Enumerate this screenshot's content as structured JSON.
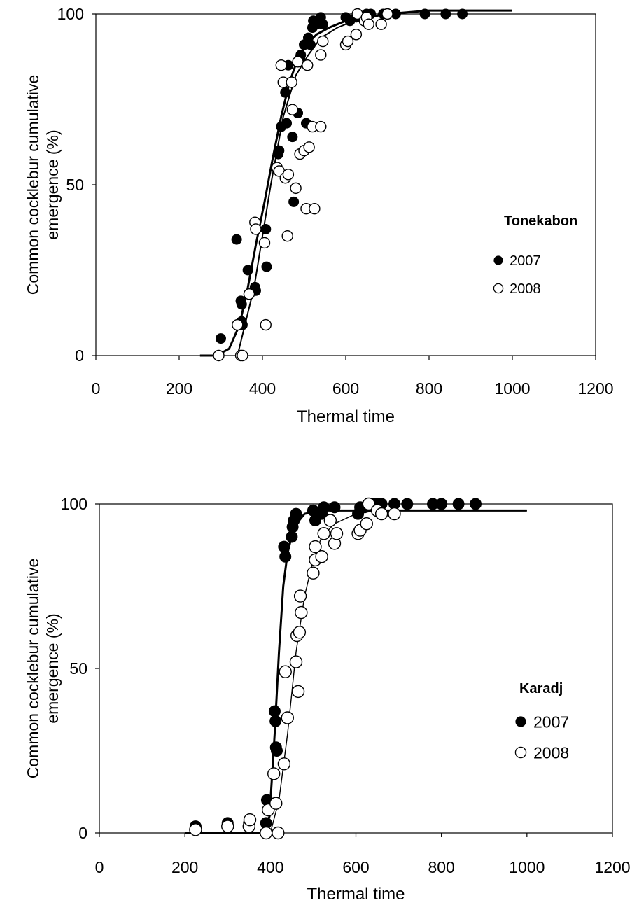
{
  "chart_data": [
    {
      "type": "scatter",
      "xlabel": "Thermal time",
      "ylabel": "Common cocklebur cumulative emergence (%)",
      "ylabel_lines": [
        "Common cocklebur cumulative",
        "emergence (%)"
      ],
      "xlim": [
        0,
        1200
      ],
      "ylim": [
        0,
        100
      ],
      "x_ticks": [
        "0",
        "200",
        "400",
        "600",
        "800",
        "1000",
        "1200"
      ],
      "y_ticks": [
        "0",
        "50",
        "100"
      ],
      "grid": false,
      "legend_title": "Tonekabon",
      "legend_placement": "right",
      "series": [
        {
          "name": "2007",
          "marker": "filled",
          "points": [
            [
              300,
              5
            ],
            [
              338,
              34
            ],
            [
              348,
              16
            ],
            [
              350,
              15
            ],
            [
              350,
              10
            ],
            [
              352,
              9
            ],
            [
              365,
              25
            ],
            [
              382,
              20
            ],
            [
              384,
              19
            ],
            [
              408,
              37
            ],
            [
              410,
              26
            ],
            [
              432,
              55
            ],
            [
              438,
              59
            ],
            [
              440,
              60
            ],
            [
              445,
              67
            ],
            [
              458,
              68
            ],
            [
              462,
              85
            ],
            [
              455,
              77
            ],
            [
              472,
              64
            ],
            [
              475,
              45
            ],
            [
              485,
              71
            ],
            [
              490,
              87
            ],
            [
              492,
              88
            ],
            [
              500,
              91
            ],
            [
              505,
              68
            ],
            [
              510,
              93
            ],
            [
              515,
              91
            ],
            [
              520,
              96
            ],
            [
              522,
              98
            ],
            [
              530,
              97
            ],
            [
              540,
              99
            ],
            [
              545,
              97
            ],
            [
              600,
              99
            ],
            [
              610,
              98
            ],
            [
              625,
              99
            ],
            [
              640,
              99
            ],
            [
              650,
              100
            ],
            [
              660,
              100
            ],
            [
              690,
              100
            ],
            [
              720,
              100
            ],
            [
              790,
              100
            ],
            [
              840,
              100
            ],
            [
              880,
              100
            ]
          ],
          "fit": [
            [
              250,
              0
            ],
            [
              290,
              0
            ],
            [
              320,
              2
            ],
            [
              345,
              9
            ],
            [
              365,
              20
            ],
            [
              385,
              33
            ],
            [
              405,
              45
            ],
            [
              425,
              58
            ],
            [
              445,
              70
            ],
            [
              465,
              80
            ],
            [
              485,
              87
            ],
            [
              505,
              91
            ],
            [
              530,
              94
            ],
            [
              560,
              96
            ],
            [
              600,
              98
            ],
            [
              650,
              99
            ],
            [
              700,
              100
            ],
            [
              800,
              101
            ],
            [
              1000,
              101
            ]
          ]
        },
        {
          "name": "2008",
          "marker": "open",
          "points": [
            [
              295,
              0
            ],
            [
              340,
              9
            ],
            [
              348,
              0
            ],
            [
              352,
              0
            ],
            [
              368,
              18
            ],
            [
              382,
              39
            ],
            [
              384,
              37
            ],
            [
              405,
              33
            ],
            [
              408,
              9
            ],
            [
              435,
              55
            ],
            [
              440,
              54
            ],
            [
              445,
              85
            ],
            [
              450,
              80
            ],
            [
              455,
              52
            ],
            [
              460,
              35
            ],
            [
              462,
              53
            ],
            [
              470,
              80
            ],
            [
              472,
              72
            ],
            [
              480,
              49
            ],
            [
              485,
              86
            ],
            [
              490,
              59
            ],
            [
              500,
              60
            ],
            [
              505,
              43
            ],
            [
              508,
              85
            ],
            [
              512,
              61
            ],
            [
              520,
              67
            ],
            [
              525,
              43
            ],
            [
              540,
              67
            ],
            [
              540,
              88
            ],
            [
              545,
              92
            ],
            [
              600,
              91
            ],
            [
              605,
              92
            ],
            [
              625,
              94
            ],
            [
              628,
              100
            ],
            [
              645,
              98
            ],
            [
              650,
              99
            ],
            [
              655,
              97
            ],
            [
              685,
              97
            ],
            [
              700,
              100
            ]
          ],
          "fit": [
            [
              340,
              0
            ],
            [
              380,
              20
            ],
            [
              420,
              50
            ],
            [
              450,
              70
            ],
            [
              480,
              82
            ],
            [
              510,
              88
            ],
            [
              540,
              93
            ],
            [
              580,
              96
            ],
            [
              620,
              98
            ],
            [
              700,
              100
            ]
          ]
        }
      ]
    },
    {
      "type": "scatter",
      "xlabel": "Thermal time",
      "ylabel": "Common cocklebur cumulative emergence (%)",
      "ylabel_lines": [
        "Common cocklebur cumulative",
        "emergence (%)"
      ],
      "xlim": [
        0,
        1200
      ],
      "ylim": [
        0,
        100
      ],
      "x_ticks": [
        "0",
        "200",
        "400",
        "600",
        "800",
        "1000",
        "1200"
      ],
      "y_ticks": [
        "0",
        "50",
        "100"
      ],
      "grid": false,
      "legend_title": "Karadj",
      "legend_placement": "right",
      "series": [
        {
          "name": "2007",
          "marker": "filled",
          "points": [
            [
              225,
              2
            ],
            [
              300,
              3
            ],
            [
              350,
              3
            ],
            [
              352,
              4
            ],
            [
              390,
              3
            ],
            [
              392,
              10
            ],
            [
              410,
              37
            ],
            [
              412,
              34
            ],
            [
              413,
              26
            ],
            [
              415,
              25
            ],
            [
              432,
              87
            ],
            [
              435,
              84
            ],
            [
              450,
              90
            ],
            [
              452,
              93
            ],
            [
              455,
              95
            ],
            [
              460,
              97
            ],
            [
              500,
              98
            ],
            [
              505,
              95
            ],
            [
              520,
              97
            ],
            [
              525,
              99
            ],
            [
              550,
              99
            ],
            [
              605,
              97
            ],
            [
              610,
              99
            ],
            [
              620,
              99
            ],
            [
              640,
              100
            ],
            [
              650,
              100
            ],
            [
              660,
              100
            ],
            [
              690,
              100
            ],
            [
              720,
              100
            ],
            [
              780,
              100
            ],
            [
              800,
              100
            ],
            [
              840,
              100
            ],
            [
              880,
              100
            ]
          ],
          "fit": [
            [
              200,
              0
            ],
            [
              380,
              0
            ],
            [
              398,
              5
            ],
            [
              410,
              30
            ],
            [
              420,
              55
            ],
            [
              430,
              75
            ],
            [
              440,
              85
            ],
            [
              455,
              93
            ],
            [
              480,
              97
            ],
            [
              520,
              98
            ],
            [
              600,
              98
            ],
            [
              1000,
              98
            ]
          ]
        },
        {
          "name": "2008",
          "marker": "open",
          "points": [
            [
              225,
              1
            ],
            [
              300,
              2
            ],
            [
              350,
              2
            ],
            [
              352,
              4
            ],
            [
              390,
              0
            ],
            [
              395,
              7
            ],
            [
              408,
              18
            ],
            [
              413,
              9
            ],
            [
              418,
              0
            ],
            [
              432,
              21
            ],
            [
              435,
              49
            ],
            [
              440,
              35
            ],
            [
              460,
              52
            ],
            [
              462,
              60
            ],
            [
              465,
              43
            ],
            [
              468,
              61
            ],
            [
              470,
              72
            ],
            [
              472,
              67
            ],
            [
              500,
              79
            ],
            [
              505,
              87
            ],
            [
              505,
              83
            ],
            [
              520,
              84
            ],
            [
              525,
              91
            ],
            [
              540,
              95
            ],
            [
              550,
              88
            ],
            [
              555,
              91
            ],
            [
              605,
              91
            ],
            [
              610,
              92
            ],
            [
              625,
              94
            ],
            [
              630,
              100
            ],
            [
              650,
              98
            ],
            [
              660,
              97
            ],
            [
              690,
              97
            ]
          ],
          "fit": [
            [
              400,
              0
            ],
            [
              420,
              10
            ],
            [
              440,
              30
            ],
            [
              460,
              55
            ],
            [
              480,
              72
            ],
            [
              500,
              83
            ],
            [
              520,
              90
            ],
            [
              550,
              94
            ],
            [
              600,
              97
            ],
            [
              650,
              98
            ],
            [
              1000,
              98
            ]
          ]
        }
      ]
    }
  ]
}
